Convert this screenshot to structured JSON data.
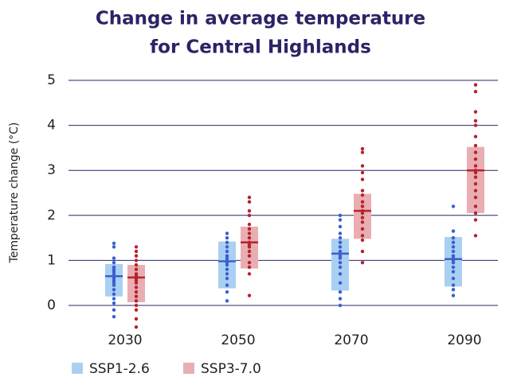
{
  "chart_data": {
    "type": "range",
    "title": [
      "Change in average temperature",
      "for Central Highlands"
    ],
    "ylabel": "Temperature change (°C)",
    "categories": [
      "2030",
      "2050",
      "2070",
      "2090"
    ],
    "ylim": [
      0,
      5
    ],
    "yticks": [
      0,
      1,
      2,
      3,
      4,
      5
    ],
    "grid": true,
    "series": [
      {
        "name": "SSP1-2.6",
        "color": "#3b5fd0",
        "box_color": "#a9d0f2",
        "low": [
          0.2,
          0.38,
          0.33,
          0.42
        ],
        "high": [
          0.92,
          1.42,
          1.48,
          1.52
        ],
        "median": [
          0.65,
          0.98,
          1.15,
          1.03
        ],
        "points": [
          [
            -0.25,
            -0.1,
            0.05,
            0.15,
            0.25,
            0.35,
            0.45,
            0.5,
            0.55,
            0.6,
            0.65,
            0.7,
            0.75,
            0.8,
            0.85,
            0.95,
            1.05,
            1.3,
            1.38
          ],
          [
            0.1,
            0.3,
            0.45,
            0.6,
            0.7,
            0.8,
            0.9,
            0.95,
            1.0,
            1.05,
            1.1,
            1.2,
            1.3,
            1.4,
            1.5,
            1.6
          ],
          [
            0.0,
            0.15,
            0.3,
            0.5,
            0.7,
            0.85,
            0.95,
            1.05,
            1.1,
            1.15,
            1.2,
            1.3,
            1.4,
            1.5,
            1.6,
            1.75,
            1.9,
            2.0
          ],
          [
            0.22,
            0.35,
            0.45,
            0.6,
            0.75,
            0.85,
            0.95,
            1.0,
            1.05,
            1.1,
            1.2,
            1.3,
            1.4,
            1.5,
            1.65,
            2.2
          ]
        ]
      },
      {
        "name": "SSP3-7.0",
        "color": "#b5232c",
        "box_color": "#e9aeb2",
        "low": [
          0.07,
          0.82,
          1.48,
          2.05
        ],
        "high": [
          0.9,
          1.75,
          2.48,
          3.52
        ],
        "median": [
          0.62,
          1.4,
          2.1,
          3.0
        ],
        "points": [
          [
            -0.48,
            -0.3,
            -0.1,
            0.0,
            0.1,
            0.2,
            0.3,
            0.4,
            0.5,
            0.55,
            0.6,
            0.65,
            0.7,
            0.8,
            0.9,
            1.0,
            1.1,
            1.2,
            1.3
          ],
          [
            0.22,
            0.7,
            0.85,
            0.95,
            1.1,
            1.2,
            1.3,
            1.35,
            1.4,
            1.5,
            1.6,
            1.7,
            1.8,
            2.0,
            2.1,
            2.3,
            2.4
          ],
          [
            0.95,
            1.2,
            1.45,
            1.55,
            1.7,
            1.85,
            1.95,
            2.05,
            2.1,
            2.2,
            2.3,
            2.45,
            2.55,
            2.8,
            2.95,
            3.1,
            3.4,
            3.48
          ],
          [
            1.55,
            1.9,
            2.05,
            2.2,
            2.4,
            2.55,
            2.7,
            2.85,
            2.95,
            3.0,
            3.1,
            3.25,
            3.4,
            3.55,
            3.75,
            4.0,
            4.1,
            4.3,
            4.75,
            4.9
          ]
        ]
      }
    ]
  }
}
